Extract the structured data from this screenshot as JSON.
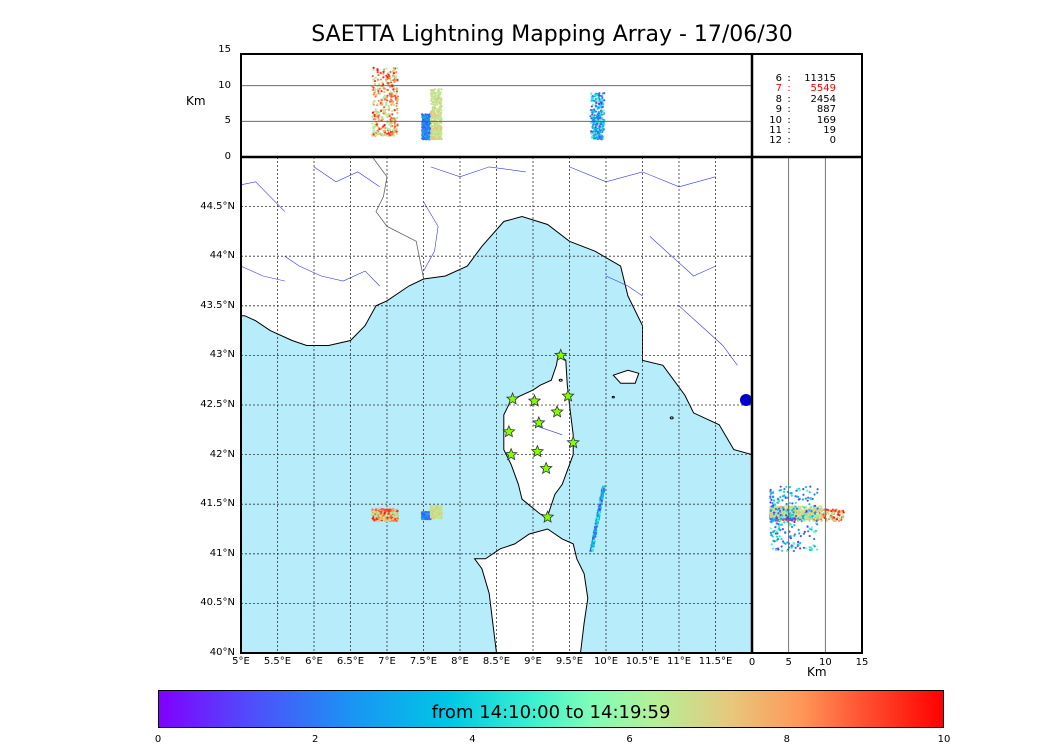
{
  "title": "SAETTA Lightning Mapping Array - 17/06/30",
  "colorbar_label": "from 14:10:00 to 14:19:59",
  "colorbar_ticks": [
    "0",
    "2",
    "4",
    "6",
    "8",
    "10"
  ],
  "altitude_unit": "Km",
  "x_unit": "Km",
  "altitude_ticks": [
    "15",
    "10",
    "5",
    "0"
  ],
  "right_x_ticks": [
    "0",
    "5",
    "10",
    "15"
  ],
  "lat_labels": [
    "44.5°N",
    "44°N",
    "43.5°N",
    "43°N",
    "42.5°N",
    "42°N",
    "41.5°N",
    "41°N",
    "40.5°N",
    "40°N"
  ],
  "lon_labels": [
    "5°E",
    "5.5°E",
    "6°E",
    "6.5°E",
    "7°E",
    "7.5°E",
    "8°E",
    "8.5°E",
    "9°E",
    "9.5°E",
    "10°E",
    "10.5°E",
    "11°E",
    "11.5°E"
  ],
  "station_counts": [
    {
      "num": "6",
      "sep": ":",
      "count": "11315",
      "color": "#000000"
    },
    {
      "num": "7",
      "sep": ":",
      "count": "5549",
      "color": "#ff0000"
    },
    {
      "num": "8",
      "sep": ":",
      "count": "2454",
      "color": "#000000"
    },
    {
      "num": "9",
      "sep": ":",
      "count": "887",
      "color": "#000000"
    },
    {
      "num": "10",
      "sep": ":",
      "count": "169",
      "color": "#000000"
    },
    {
      "num": "11",
      "sep": ":",
      "count": "19",
      "color": "#000000"
    },
    {
      "num": "12",
      "sep": ":",
      "count": "0",
      "color": "#000000"
    }
  ],
  "colors": {
    "sea": "#b7ecfb",
    "coast": "#000000",
    "rivers": "#3333ff",
    "grid": "#333333",
    "station_star": "#7fff00"
  },
  "chart_data": {
    "type": "scatter",
    "map_extent": {
      "lon": [
        5,
        12
      ],
      "lat": [
        40,
        45
      ]
    },
    "altitude_range_km": [
      0,
      15
    ],
    "time_color_range_min": [
      0,
      10
    ],
    "stations": [
      {
        "lon": 9.38,
        "lat": 43.0
      },
      {
        "lon": 8.72,
        "lat": 42.56
      },
      {
        "lon": 9.02,
        "lat": 42.54
      },
      {
        "lon": 9.48,
        "lat": 42.59
      },
      {
        "lon": 9.33,
        "lat": 42.43
      },
      {
        "lon": 9.08,
        "lat": 42.32
      },
      {
        "lon": 8.67,
        "lat": 42.23
      },
      {
        "lon": 9.55,
        "lat": 42.12
      },
      {
        "lon": 8.7,
        "lat": 42.0
      },
      {
        "lon": 9.06,
        "lat": 42.03
      },
      {
        "lon": 9.18,
        "lat": 41.86
      },
      {
        "lon": 9.2,
        "lat": 41.37
      }
    ],
    "lightning_clusters": [
      {
        "lon": [
          6.8,
          7.15
        ],
        "lat": [
          41.33,
          41.45
        ],
        "alt_km": [
          3.0,
          12.5
        ],
        "time_min": [
          5.5,
          9.8
        ]
      },
      {
        "lon": [
          7.48,
          7.6
        ],
        "lat": [
          41.35,
          41.42
        ],
        "alt_km": [
          2.5,
          6.0
        ],
        "time_min": [
          1.0,
          3.5
        ]
      },
      {
        "lon": [
          7.6,
          7.75
        ],
        "lat": [
          41.36,
          41.48
        ],
        "alt_km": [
          2.5,
          9.5
        ],
        "time_min": [
          6.0,
          7.5
        ]
      },
      {
        "lon": [
          9.8,
          9.97
        ],
        "lat": [
          41.02,
          41.68
        ],
        "alt_km": [
          2.5,
          9.0
        ],
        "time_min": [
          0.5,
          5.5
        ]
      }
    ]
  }
}
